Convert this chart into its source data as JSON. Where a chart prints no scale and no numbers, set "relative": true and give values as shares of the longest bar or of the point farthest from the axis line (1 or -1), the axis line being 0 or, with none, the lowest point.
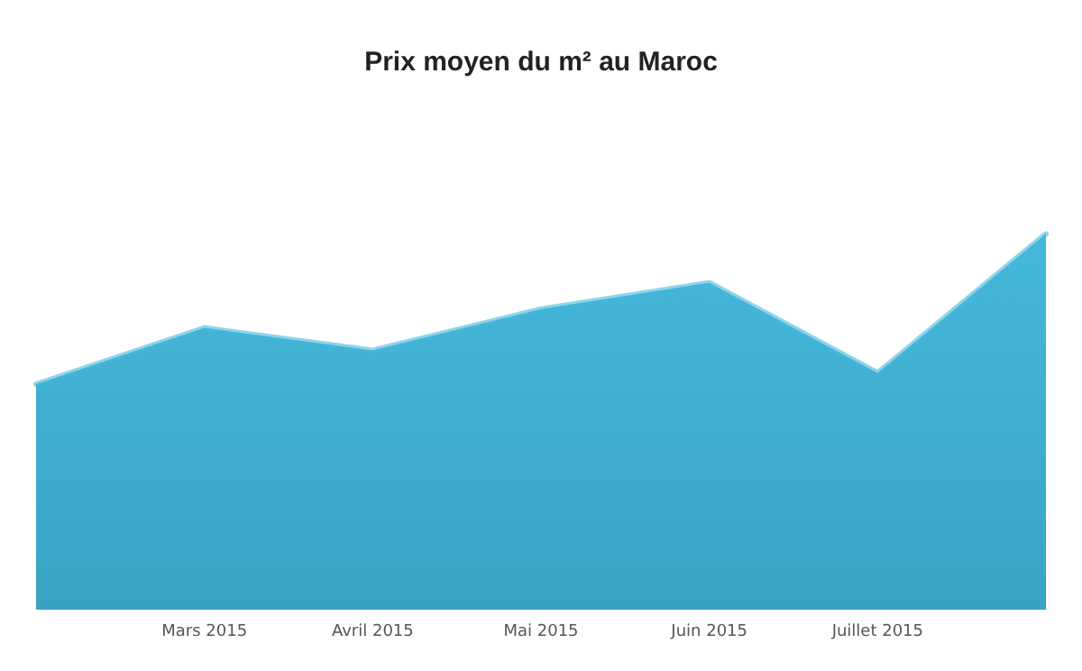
{
  "chart_data": {
    "type": "area",
    "title": "Prix moyen du m² au Maroc",
    "categories": [
      null,
      "Mars 2015",
      "Avril 2015",
      "Mai 2015",
      "Juin 2015",
      "Juillet 2015",
      null
    ],
    "series": [
      {
        "color": "#45b8dc",
        "values": [
          0.6,
          0.75,
          0.69,
          0.8,
          0.87,
          0.63,
          1
        ]
      }
    ],
    "relative": true,
    "marker": "none"
  }
}
